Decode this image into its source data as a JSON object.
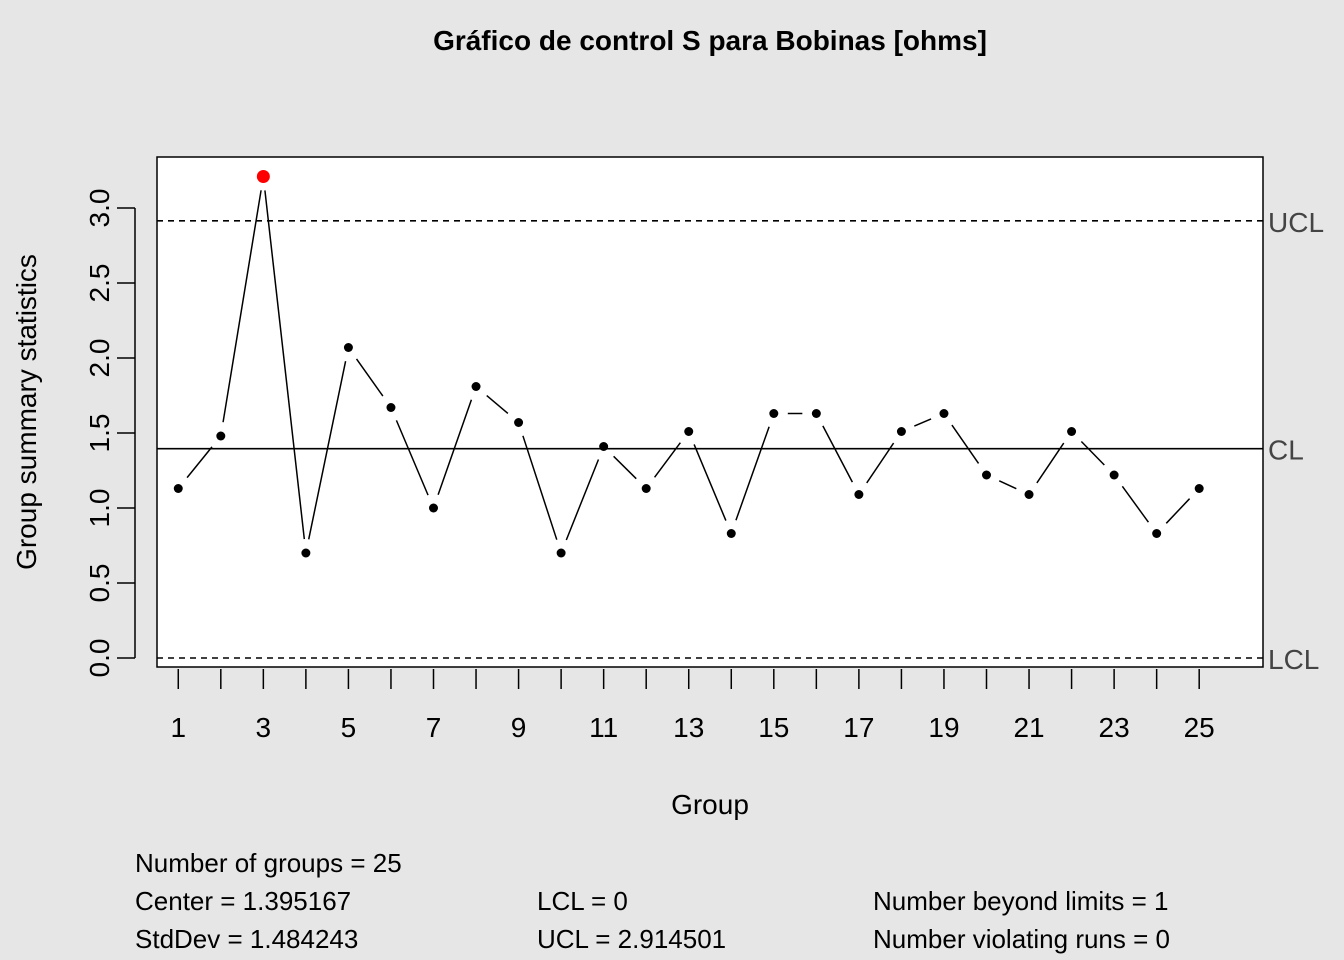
{
  "chart_data": {
    "type": "line",
    "title": "Gráfico de control S para Bobinas [ohms]",
    "xlabel": "Group",
    "ylabel": "Group summary statistics",
    "x": [
      1,
      2,
      3,
      4,
      5,
      6,
      7,
      8,
      9,
      10,
      11,
      12,
      13,
      14,
      15,
      16,
      17,
      18,
      19,
      20,
      21,
      22,
      23,
      24,
      25
    ],
    "values": [
      1.13,
      1.48,
      3.21,
      0.7,
      2.07,
      1.67,
      1.0,
      1.81,
      1.57,
      0.7,
      1.41,
      1.13,
      1.51,
      0.83,
      1.63,
      1.63,
      1.09,
      1.51,
      1.63,
      1.22,
      1.09,
      1.51,
      1.22,
      0.83,
      1.13
    ],
    "beyond_limits": [
      3
    ],
    "x_ticks_labeled": [
      1,
      3,
      5,
      7,
      9,
      11,
      13,
      15,
      17,
      19,
      21,
      23,
      25
    ],
    "y_ticks": [
      "0.0",
      "0.5",
      "1.0",
      "1.5",
      "2.0",
      "2.5",
      "3.0"
    ],
    "xlim": [
      0.5,
      26.5
    ],
    "ylim": [
      -0.06,
      3.34
    ],
    "limits": {
      "center": 1.395167,
      "lcl": 0,
      "ucl": 2.914501,
      "labels": {
        "ucl": "UCL",
        "cl": "CL",
        "lcl": "LCL"
      }
    },
    "colors": {
      "point": "#000000",
      "violation": "#ff0000",
      "background": "#e6e6e6",
      "panel": "#ffffff"
    },
    "grid": false
  },
  "stats": {
    "groups": "Number of groups = 25",
    "center": "Center = 1.395167",
    "stddev": "StdDev = 1.484243",
    "lcl": "LCL = 0",
    "ucl": "UCL = 2.914501",
    "beyond": "Number beyond limits = 1",
    "runs": "Number violating runs = 0"
  }
}
